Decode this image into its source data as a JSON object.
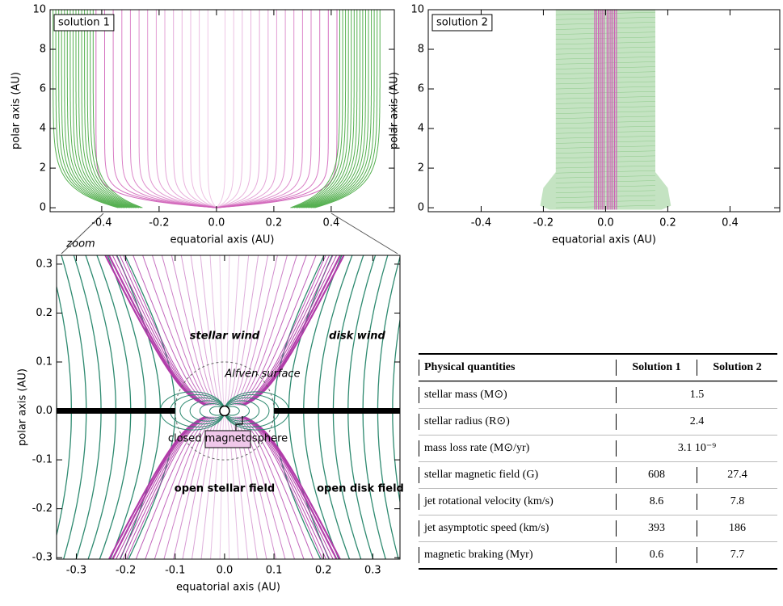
{
  "chart_data": [
    {
      "type": "field-lines",
      "variant": "solution-1",
      "title": "solution 1",
      "x_label": "equatorial axis (AU)",
      "y_label": "polar axis (AU)",
      "xlim": [
        -0.58,
        0.62
      ],
      "ylim": [
        -0.2,
        10
      ],
      "xticks": [
        -0.4,
        -0.2,
        {
          "value": 0,
          "label": "0.0"
        },
        0.2,
        0.4
      ],
      "yticks": [
        0,
        2,
        4,
        6,
        8,
        10
      ],
      "colors": {
        "stellar": "#d060b8",
        "disk": "#55b050"
      }
    },
    {
      "type": "field-lines",
      "variant": "solution-2",
      "title": "solution 2",
      "x_label": "equatorial axis (AU)",
      "y_label": "polar axis (AU)",
      "xlim": [
        -0.57,
        0.56
      ],
      "ylim": [
        -0.2,
        10
      ],
      "xticks": [
        -0.4,
        -0.2,
        {
          "value": 0,
          "label": "0.0"
        },
        0.2,
        0.4
      ],
      "yticks": [
        0,
        2,
        4,
        6,
        8,
        10
      ],
      "colors": {
        "stellar": "#d060b8",
        "disk": "#55b050"
      }
    },
    {
      "type": "field-lines",
      "variant": "zoom",
      "x_label": "equatorial axis (AU)",
      "y_label": "polar axis (AU)",
      "xlim": [
        -0.34,
        0.355
      ],
      "ylim": [
        -0.303,
        0.318
      ],
      "xticks": [
        -0.3,
        -0.2,
        -0.1,
        {
          "value": 0,
          "label": "0.0"
        },
        0.1,
        0.2,
        0.3
      ],
      "yticks": [
        -0.3,
        -0.2,
        -0.1,
        {
          "value": 0,
          "label": "0.0"
        },
        0.1,
        0.2,
        0.3
      ],
      "colors": {
        "stellar": "#b03aa8",
        "disk": "#2e8a70"
      },
      "annotations": [
        "zoom",
        "stellar wind",
        "disk wind",
        "Alfven surface",
        "closed magnetosphere",
        "open stellar field",
        "open disk field"
      ]
    }
  ],
  "table": {
    "header": [
      "Physical quantities",
      "Solution 1",
      "Solution 2"
    ],
    "rows": [
      [
        "stellar mass (M⊙)",
        1.5
      ],
      [
        "stellar radius (R⊙)",
        2.4
      ],
      [
        "mass loss rate (M⊙/yr)",
        "3.1 10⁻⁹"
      ],
      [
        "stellar magnetic field (G)",
        608,
        27.4
      ],
      [
        "jet rotational velocity (km/s)",
        8.6,
        7.8
      ],
      [
        "jet asymptotic speed (km/s)",
        393,
        186
      ],
      [
        "magnetic braking (Myr)",
        0.6,
        7.7
      ]
    ]
  }
}
